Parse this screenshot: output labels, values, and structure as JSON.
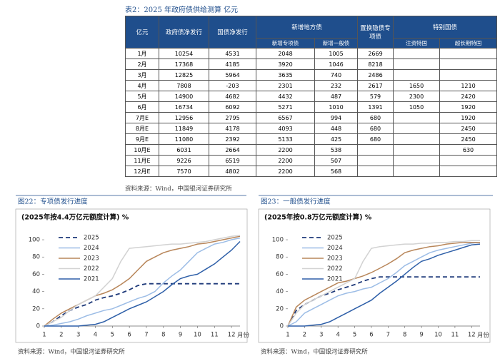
{
  "table_title": "表2：2025 年政府债供给测算 亿元",
  "table": {
    "header_top": [
      "亿元",
      "政府债净发行",
      "国债净发行",
      "新增地方债",
      "置换隐债专项债",
      "特别国债"
    ],
    "header_sub": [
      "新增专项债",
      "新增一般债",
      "注资特国",
      "超长期特国"
    ],
    "rows": [
      [
        "1月",
        10254,
        4531,
        2048,
        1005,
        2669,
        null,
        null
      ],
      [
        "2月",
        17368,
        4185,
        3920,
        1046,
        8218,
        null,
        null
      ],
      [
        "3月",
        12825,
        5964,
        3635,
        740,
        2486,
        null,
        null
      ],
      [
        "4月",
        7808,
        -203,
        2301,
        232,
        2617,
        1650,
        1210
      ],
      [
        "5月",
        14900,
        4682,
        4432,
        487,
        579,
        2300,
        2420
      ],
      [
        "6月",
        16734,
        6092,
        5271,
        1010,
        1391,
        1050,
        1920
      ],
      [
        "7月E",
        12956,
        2795,
        6567,
        994,
        680,
        null,
        1920
      ],
      [
        "8月E",
        11849,
        4178,
        4093,
        448,
        680,
        null,
        2450
      ],
      [
        "9月E",
        11080,
        2392,
        5133,
        425,
        680,
        null,
        2450
      ],
      [
        "10月E",
        6031,
        2664,
        2200,
        538,
        null,
        null,
        630
      ],
      [
        "11月E",
        9226,
        6519,
        2200,
        507,
        null,
        null,
        null
      ],
      [
        "12月E",
        7570,
        4802,
        2200,
        568,
        null,
        null,
        null
      ]
    ]
  },
  "table_source": "资料来源：Wind，中国银河证券研究所",
  "chart_data": [
    {
      "type": "line",
      "figure_label": "图22：专项债发行进度",
      "title": "(2025年按4.4万亿元额度计算) %",
      "x_label": "月份",
      "source": "资料来源：Wind，中国银河证券研究所",
      "x": [
        1,
        1.5,
        2,
        2.5,
        3,
        3.5,
        4,
        4.5,
        5,
        5.5,
        6,
        6.5,
        7,
        7.5,
        8,
        8.5,
        9,
        9.5,
        10,
        10.5,
        11,
        11.5,
        12,
        12.5
      ],
      "xlim": [
        1,
        12.5
      ],
      "xticks": [
        1,
        2,
        3,
        4,
        5,
        6,
        7,
        8,
        9,
        10,
        11,
        12
      ],
      "ylim": [
        0,
        105
      ],
      "yticks": [
        0,
        20,
        40,
        60,
        80,
        100
      ],
      "series": [
        {
          "name": "2025",
          "color": "#1f3a7a",
          "dashed": true,
          "values": [
            0,
            5,
            12,
            18,
            22,
            25,
            30,
            33,
            35,
            38,
            42,
            47,
            49,
            49,
            49,
            49,
            49,
            49,
            49,
            49,
            49,
            49,
            49,
            49
          ]
        },
        {
          "name": "2024",
          "color": "#9dbde6",
          "values": [
            0,
            1,
            3,
            5,
            8,
            12,
            15,
            18,
            20,
            24,
            28,
            32,
            35,
            40,
            50,
            58,
            65,
            75,
            85,
            90,
            95,
            97,
            100,
            102
          ]
        },
        {
          "name": "2023",
          "color": "#b8865a",
          "values": [
            0,
            8,
            15,
            20,
            25,
            30,
            35,
            38,
            42,
            48,
            55,
            65,
            75,
            80,
            85,
            88,
            90,
            92,
            95,
            96,
            98,
            100,
            102,
            104
          ]
        },
        {
          "name": "2022",
          "color": "#d2d2d2",
          "values": [
            0,
            5,
            10,
            18,
            25,
            30,
            35,
            45,
            55,
            75,
            90,
            91,
            92,
            93,
            94,
            95,
            95,
            96,
            97,
            98,
            100,
            102,
            104,
            105
          ]
        },
        {
          "name": "2021",
          "color": "#2e5fa8",
          "values": [
            0,
            0,
            0,
            0,
            0,
            1,
            2,
            5,
            10,
            15,
            20,
            24,
            28,
            34,
            40,
            48,
            55,
            58,
            60,
            66,
            72,
            80,
            88,
            98
          ]
        }
      ]
    },
    {
      "type": "line",
      "figure_label": "图23：一般债发行进度",
      "title": "(2025年按0.8万亿元额度计算) %",
      "x_label": "月份",
      "source": "资料来源：Wind，中国银河证券研究所",
      "x": [
        1,
        1.5,
        2,
        2.5,
        3,
        3.5,
        4,
        4.5,
        5,
        5.5,
        6,
        6.5,
        7,
        7.5,
        8,
        8.5,
        9,
        9.5,
        10,
        10.5,
        11,
        11.5,
        12,
        12.5
      ],
      "xlim": [
        1,
        12.5
      ],
      "xticks": [
        1,
        2,
        3,
        4,
        5,
        6,
        7,
        8,
        9,
        10,
        11,
        12
      ],
      "ylim": [
        0,
        105
      ],
      "yticks": [
        0,
        20,
        40,
        60,
        80,
        100
      ],
      "series": [
        {
          "name": "2025",
          "color": "#1f3a7a",
          "dashed": true,
          "values": [
            0,
            18,
            25,
            30,
            35,
            38,
            42,
            45,
            48,
            52,
            55,
            57,
            57,
            57,
            57,
            57,
            57,
            57,
            57,
            57,
            57,
            57,
            57,
            57
          ]
        },
        {
          "name": "2024",
          "color": "#9dbde6",
          "values": [
            0,
            5,
            15,
            20,
            25,
            30,
            35,
            38,
            40,
            43,
            45,
            50,
            55,
            62,
            70,
            75,
            80,
            85,
            88,
            90,
            92,
            94,
            96,
            97
          ]
        },
        {
          "name": "2023",
          "color": "#b8865a",
          "values": [
            0,
            22,
            30,
            35,
            40,
            45,
            50,
            52,
            55,
            58,
            62,
            67,
            72,
            78,
            85,
            88,
            90,
            92,
            93,
            95,
            96,
            97,
            97,
            97
          ]
        },
        {
          "name": "2022",
          "color": "#d2d2d2",
          "values": [
            0,
            15,
            25,
            30,
            35,
            40,
            45,
            50,
            55,
            75,
            90,
            92,
            93,
            94,
            95,
            95,
            96,
            96,
            97,
            97,
            98,
            98,
            99,
            99
          ]
        },
        {
          "name": "2021",
          "color": "#2e5fa8",
          "values": [
            0,
            0,
            0,
            1,
            2,
            5,
            10,
            15,
            20,
            25,
            30,
            38,
            45,
            52,
            60,
            68,
            75,
            78,
            82,
            85,
            88,
            91,
            94,
            95
          ]
        }
      ]
    }
  ]
}
